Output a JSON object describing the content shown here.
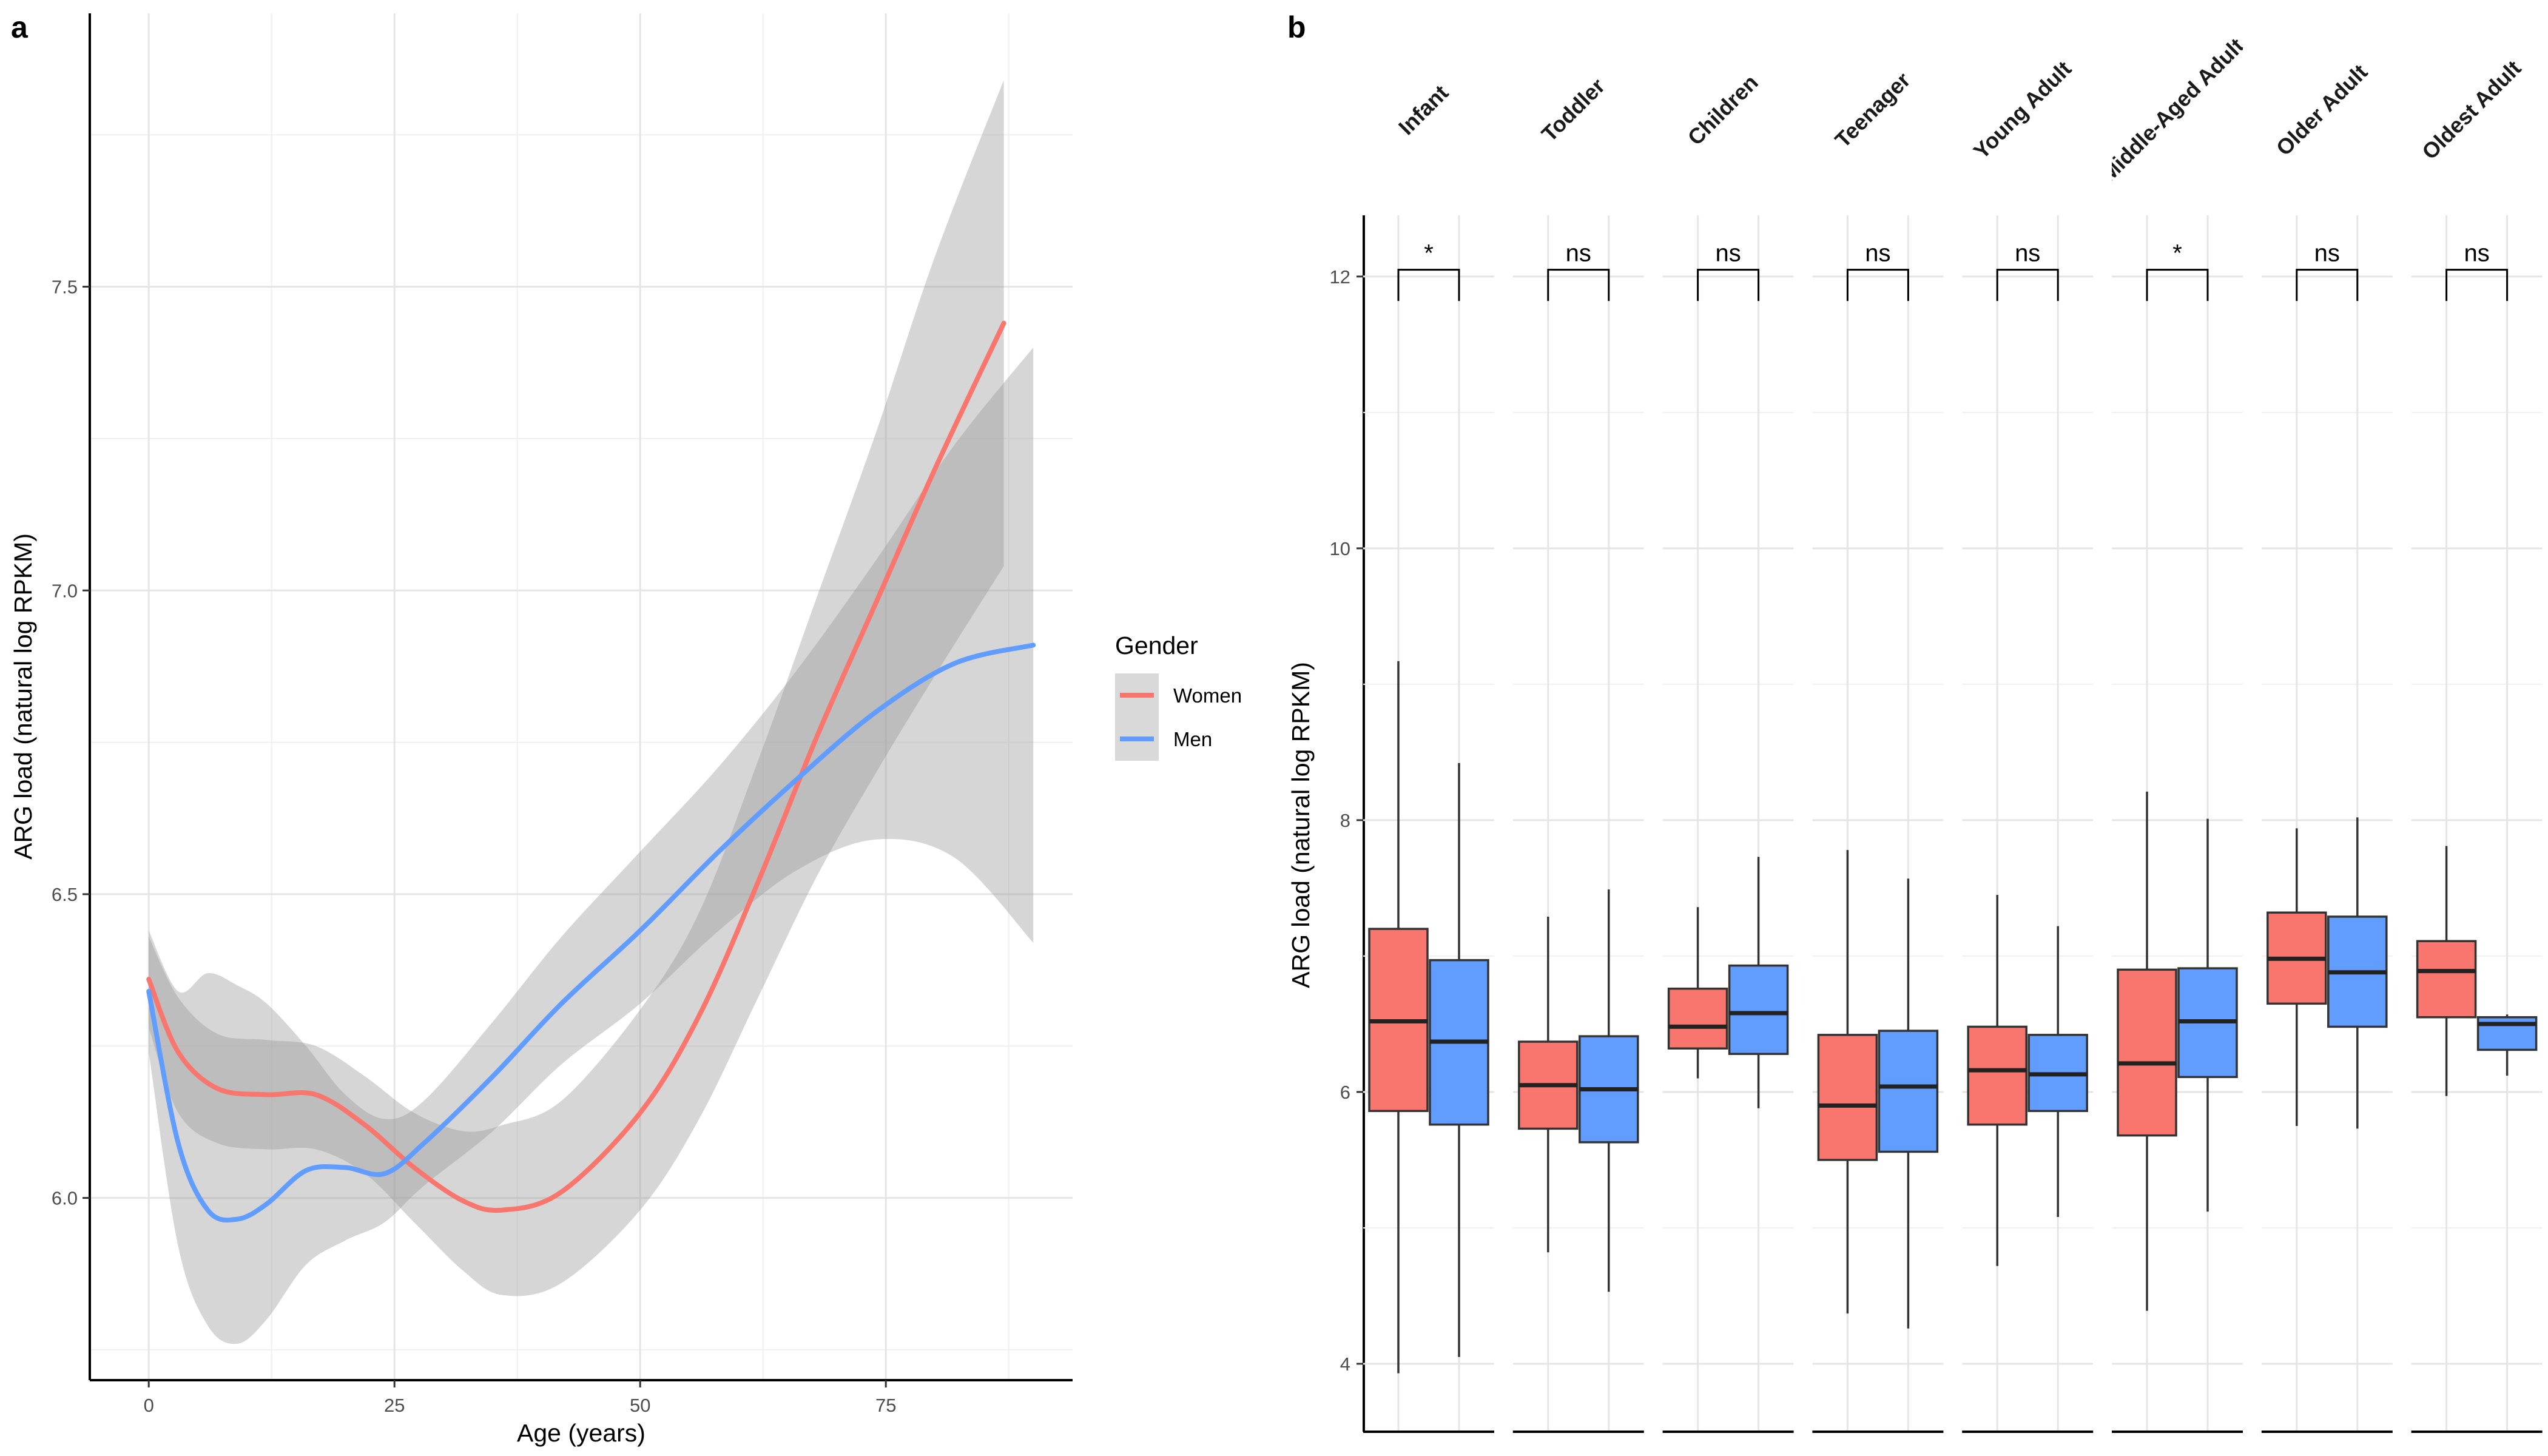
{
  "panels": {
    "a": "a",
    "b": "b"
  },
  "colors": {
    "women": "#F8766D",
    "men": "#619CFF",
    "ribbon": "#999999"
  },
  "chart_data": [
    {
      "type": "line",
      "panel": "a",
      "title": "",
      "xlabel": "Age (years)",
      "ylabel": "ARG load (natural log RPKM)",
      "xlim": [
        -6,
        94
      ],
      "ylim": [
        5.7,
        7.95
      ],
      "xticks": [
        0,
        25,
        50,
        75
      ],
      "yticks": [
        6.0,
        6.5,
        7.0,
        7.5
      ],
      "grid": true,
      "legend": {
        "title": "Gender",
        "position": "right"
      },
      "series": [
        {
          "name": "Women",
          "x": [
            0,
            3,
            7,
            12,
            17,
            22,
            27,
            32,
            36,
            42,
            50,
            56,
            62,
            68,
            74,
            80,
            87
          ],
          "y": [
            6.36,
            6.24,
            6.18,
            6.17,
            6.17,
            6.12,
            6.05,
            5.995,
            5.98,
            6.01,
            6.14,
            6.3,
            6.52,
            6.76,
            6.98,
            7.2,
            7.44
          ],
          "ci_lower": [
            6.28,
            6.14,
            6.09,
            6.08,
            6.08,
            6.04,
            5.96,
            5.88,
            5.84,
            5.86,
            5.98,
            6.13,
            6.33,
            6.53,
            6.7,
            6.86,
            7.04
          ],
          "ci_upper": [
            6.43,
            6.33,
            6.27,
            6.26,
            6.25,
            6.2,
            6.14,
            6.11,
            6.12,
            6.16,
            6.31,
            6.47,
            6.72,
            6.99,
            7.26,
            7.55,
            7.84
          ]
        },
        {
          "name": "Men",
          "x": [
            0,
            3,
            6,
            9,
            12,
            16,
            20,
            24,
            28,
            35,
            42,
            50,
            58,
            66,
            74,
            82,
            90
          ],
          "y": [
            6.34,
            6.09,
            5.98,
            5.965,
            5.99,
            6.045,
            6.05,
            6.04,
            6.09,
            6.2,
            6.32,
            6.44,
            6.57,
            6.69,
            6.8,
            6.88,
            6.91
          ],
          "ci_lower": [
            6.24,
            5.92,
            5.79,
            5.76,
            5.8,
            5.89,
            5.93,
            5.96,
            6.02,
            6.11,
            6.22,
            6.32,
            6.44,
            6.54,
            6.59,
            6.56,
            6.42
          ],
          "ci_upper": [
            6.44,
            6.34,
            6.37,
            6.35,
            6.32,
            6.25,
            6.17,
            6.13,
            6.16,
            6.29,
            6.43,
            6.57,
            6.71,
            6.87,
            7.05,
            7.24,
            7.4
          ]
        }
      ]
    },
    {
      "type": "box",
      "panel": "b",
      "title": "",
      "xlabel": "",
      "ylabel": "ARG load (natural log RPKM)",
      "ylim": [
        3.5,
        12.45
      ],
      "yticks": [
        4,
        6,
        8,
        10,
        12
      ],
      "grid": true,
      "facets": [
        "Infant",
        "Toddler",
        "Children",
        "Teenager",
        "Young Adult",
        "Middle-Aged Adult",
        "Older Adult",
        "Oldest Adult"
      ],
      "significance": [
        "*",
        "ns",
        "ns",
        "ns",
        "ns",
        "*",
        "ns",
        "ns"
      ],
      "groups": [
        "Women",
        "Men"
      ],
      "boxes": [
        {
          "facet": "Infant",
          "group": "Women",
          "min": 3.93,
          "q1": 5.86,
          "median": 6.52,
          "q3": 7.2,
          "max": 9.17
        },
        {
          "facet": "Infant",
          "group": "Men",
          "min": 4.05,
          "q1": 5.76,
          "median": 6.37,
          "q3": 6.97,
          "max": 8.42
        },
        {
          "facet": "Toddler",
          "group": "Women",
          "min": 4.82,
          "q1": 5.73,
          "median": 6.05,
          "q3": 6.37,
          "max": 7.29
        },
        {
          "facet": "Toddler",
          "group": "Men",
          "min": 4.53,
          "q1": 5.63,
          "median": 6.02,
          "q3": 6.41,
          "max": 7.49
        },
        {
          "facet": "Children",
          "group": "Women",
          "min": 6.1,
          "q1": 6.32,
          "median": 6.48,
          "q3": 6.76,
          "max": 7.36
        },
        {
          "facet": "Children",
          "group": "Men",
          "min": 5.88,
          "q1": 6.28,
          "median": 6.58,
          "q3": 6.93,
          "max": 7.73
        },
        {
          "facet": "Teenager",
          "group": "Women",
          "min": 4.37,
          "q1": 5.5,
          "median": 5.9,
          "q3": 6.42,
          "max": 7.78
        },
        {
          "facet": "Teenager",
          "group": "Men",
          "min": 4.26,
          "q1": 5.56,
          "median": 6.04,
          "q3": 6.45,
          "max": 7.57
        },
        {
          "facet": "Young Adult",
          "group": "Women",
          "min": 4.72,
          "q1": 5.76,
          "median": 6.16,
          "q3": 6.48,
          "max": 7.45
        },
        {
          "facet": "Young Adult",
          "group": "Men",
          "min": 5.08,
          "q1": 5.86,
          "median": 6.13,
          "q3": 6.42,
          "max": 7.22
        },
        {
          "facet": "Middle-Aged Adult",
          "group": "Women",
          "min": 4.39,
          "q1": 5.68,
          "median": 6.21,
          "q3": 6.9,
          "max": 8.21
        },
        {
          "facet": "Middle-Aged Adult",
          "group": "Men",
          "min": 5.12,
          "q1": 6.11,
          "median": 6.52,
          "q3": 6.91,
          "max": 8.01
        },
        {
          "facet": "Older Adult",
          "group": "Women",
          "min": 5.75,
          "q1": 6.65,
          "median": 6.98,
          "q3": 7.32,
          "max": 7.94
        },
        {
          "facet": "Older Adult",
          "group": "Men",
          "min": 5.73,
          "q1": 6.48,
          "median": 6.88,
          "q3": 7.29,
          "max": 8.02
        },
        {
          "facet": "Oldest Adult",
          "group": "Women",
          "min": 5.97,
          "q1": 6.55,
          "median": 6.89,
          "q3": 7.11,
          "max": 7.81
        },
        {
          "facet": "Oldest Adult",
          "group": "Men",
          "min": 6.12,
          "q1": 6.31,
          "median": 6.5,
          "q3": 6.55,
          "max": 6.57
        }
      ]
    }
  ]
}
